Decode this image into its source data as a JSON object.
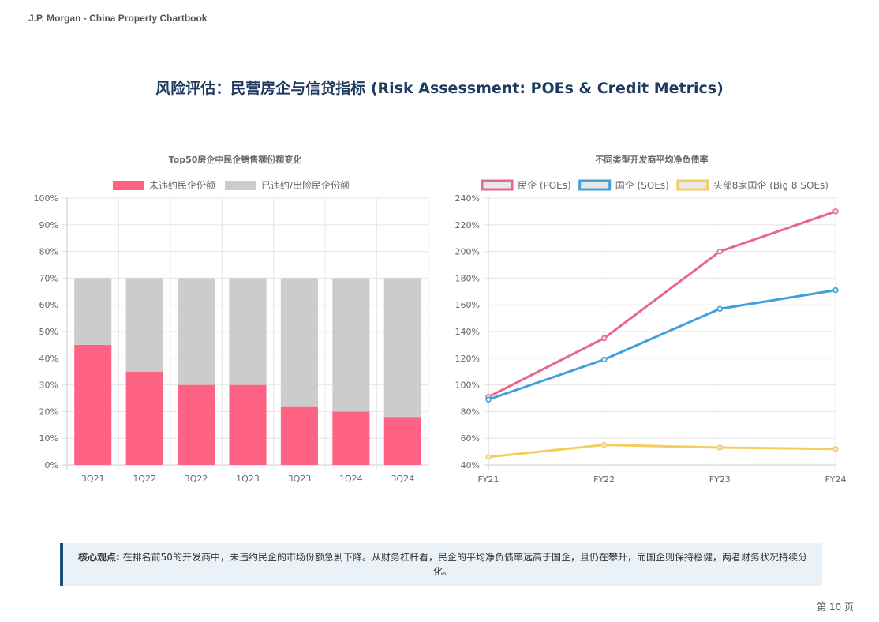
{
  "header": "J.P. Morgan - China Property Chartbook",
  "title": "风险评估：民营房企与信贷指标 (Risk Assessment: POEs & Credit Metrics)",
  "insight": {
    "label": "核心观点:",
    "text": " 在排名前50的开发商中，未违约民企的市场份额急剧下降。从财务杠杆看，民企的平均净负债率远高于国企，且仍在攀升，而国企则保持稳健，两者财务状况持续分化。"
  },
  "page_number": "第 10 页",
  "chart_data": [
    {
      "type": "bar",
      "stacked": true,
      "title": "Top50房企中民企销售额份额变化",
      "categories": [
        "3Q21",
        "1Q22",
        "3Q22",
        "1Q23",
        "3Q23",
        "1Q24",
        "3Q24"
      ],
      "series": [
        {
          "name": "未违约民企份额",
          "color": "#ff6384",
          "values": [
            45,
            35,
            30,
            30,
            22,
            20,
            18
          ]
        },
        {
          "name": "已违约/出险民企份额",
          "color": "#cccccc",
          "values": [
            25,
            35,
            40,
            40,
            48,
            50,
            52
          ]
        }
      ],
      "ylim": [
        0,
        100
      ],
      "yticks": [
        0,
        10,
        20,
        30,
        40,
        50,
        60,
        70,
        80,
        90,
        100
      ],
      "ytick_suffix": "%",
      "legend": "top",
      "grid": true
    },
    {
      "type": "line",
      "title": "不同类型开发商平均净负债率",
      "categories": [
        "FY21",
        "FY22",
        "FY23",
        "FY24"
      ],
      "series": [
        {
          "name": "民企 (POEs)",
          "color": "#e8678a",
          "values": [
            91,
            135,
            200,
            230
          ]
        },
        {
          "name": "国企 (SOEs)",
          "color": "#40a0dc",
          "values": [
            89,
            119,
            157,
            171
          ]
        },
        {
          "name": "头部8家国企 (Big 8 SOEs)",
          "color": "#f5cd5e",
          "values": [
            46,
            55,
            53,
            52
          ]
        }
      ],
      "ylim": [
        40,
        240
      ],
      "yticks": [
        40,
        60,
        80,
        100,
        120,
        140,
        160,
        180,
        200,
        220,
        240
      ],
      "ytick_suffix": "%",
      "legend": "top",
      "grid": true
    }
  ]
}
